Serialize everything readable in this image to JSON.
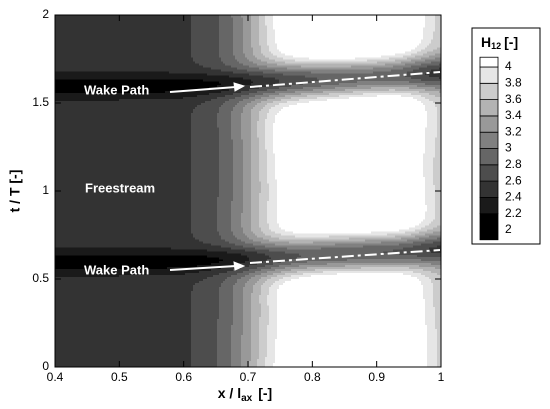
{
  "chart_data": {
    "type": "contour",
    "xlabel": {
      "text": "x / l",
      "sub": "ax",
      "unit": "[-]"
    },
    "ylabel": "t / T  [-]",
    "xlim": [
      0.4,
      1
    ],
    "ylim": [
      0,
      2
    ],
    "xticks": [
      0.4,
      0.5,
      0.6,
      0.7,
      0.8,
      0.9,
      1
    ],
    "yticks": [
      0,
      0.5,
      1,
      1.5,
      2
    ],
    "colorbar": {
      "title": "H",
      "title_sub": "12",
      "title_unit": "[-]",
      "levels": [
        2,
        2.2,
        2.4,
        2.6,
        2.8,
        3,
        3.2,
        3.4,
        3.6,
        3.8,
        4
      ],
      "colors": [
        "#000000",
        "#1a1a1a",
        "#333333",
        "#4d4d4d",
        "#666666",
        "#808080",
        "#999999",
        "#b3b3b3",
        "#cccccc",
        "#e6e6e6",
        "#ffffff"
      ]
    },
    "annotations": [
      "Wake Path",
      "Wake Path",
      "Freestream"
    ]
  }
}
